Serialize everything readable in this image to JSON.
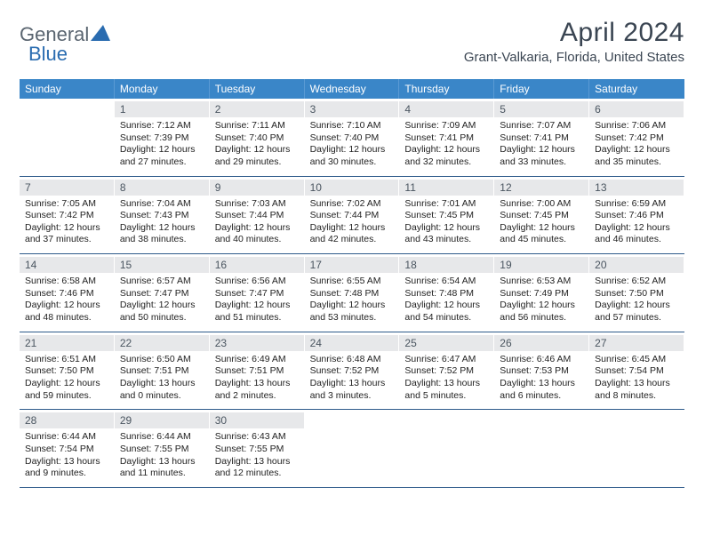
{
  "brand": {
    "text1": "General",
    "text2": "Blue",
    "tri_color": "#2a6cb0"
  },
  "header": {
    "month": "April 2024",
    "location": "Grant-Valkaria, Florida, United States"
  },
  "colors": {
    "dow_bg": "#3a86c8",
    "dow_text": "#ffffff",
    "week_border": "#2d5a8a",
    "daynum_bg": "#e7e8ea",
    "text": "#222222",
    "title_color": "#3a4552"
  },
  "dow": [
    "Sunday",
    "Monday",
    "Tuesday",
    "Wednesday",
    "Thursday",
    "Friday",
    "Saturday"
  ],
  "weeks": [
    [
      {
        "n": "",
        "sr": "",
        "ss": "",
        "dl": ""
      },
      {
        "n": "1",
        "sr": "Sunrise: 7:12 AM",
        "ss": "Sunset: 7:39 PM",
        "dl": "Daylight: 12 hours and 27 minutes."
      },
      {
        "n": "2",
        "sr": "Sunrise: 7:11 AM",
        "ss": "Sunset: 7:40 PM",
        "dl": "Daylight: 12 hours and 29 minutes."
      },
      {
        "n": "3",
        "sr": "Sunrise: 7:10 AM",
        "ss": "Sunset: 7:40 PM",
        "dl": "Daylight: 12 hours and 30 minutes."
      },
      {
        "n": "4",
        "sr": "Sunrise: 7:09 AM",
        "ss": "Sunset: 7:41 PM",
        "dl": "Daylight: 12 hours and 32 minutes."
      },
      {
        "n": "5",
        "sr": "Sunrise: 7:07 AM",
        "ss": "Sunset: 7:41 PM",
        "dl": "Daylight: 12 hours and 33 minutes."
      },
      {
        "n": "6",
        "sr": "Sunrise: 7:06 AM",
        "ss": "Sunset: 7:42 PM",
        "dl": "Daylight: 12 hours and 35 minutes."
      }
    ],
    [
      {
        "n": "7",
        "sr": "Sunrise: 7:05 AM",
        "ss": "Sunset: 7:42 PM",
        "dl": "Daylight: 12 hours and 37 minutes."
      },
      {
        "n": "8",
        "sr": "Sunrise: 7:04 AM",
        "ss": "Sunset: 7:43 PM",
        "dl": "Daylight: 12 hours and 38 minutes."
      },
      {
        "n": "9",
        "sr": "Sunrise: 7:03 AM",
        "ss": "Sunset: 7:44 PM",
        "dl": "Daylight: 12 hours and 40 minutes."
      },
      {
        "n": "10",
        "sr": "Sunrise: 7:02 AM",
        "ss": "Sunset: 7:44 PM",
        "dl": "Daylight: 12 hours and 42 minutes."
      },
      {
        "n": "11",
        "sr": "Sunrise: 7:01 AM",
        "ss": "Sunset: 7:45 PM",
        "dl": "Daylight: 12 hours and 43 minutes."
      },
      {
        "n": "12",
        "sr": "Sunrise: 7:00 AM",
        "ss": "Sunset: 7:45 PM",
        "dl": "Daylight: 12 hours and 45 minutes."
      },
      {
        "n": "13",
        "sr": "Sunrise: 6:59 AM",
        "ss": "Sunset: 7:46 PM",
        "dl": "Daylight: 12 hours and 46 minutes."
      }
    ],
    [
      {
        "n": "14",
        "sr": "Sunrise: 6:58 AM",
        "ss": "Sunset: 7:46 PM",
        "dl": "Daylight: 12 hours and 48 minutes."
      },
      {
        "n": "15",
        "sr": "Sunrise: 6:57 AM",
        "ss": "Sunset: 7:47 PM",
        "dl": "Daylight: 12 hours and 50 minutes."
      },
      {
        "n": "16",
        "sr": "Sunrise: 6:56 AM",
        "ss": "Sunset: 7:47 PM",
        "dl": "Daylight: 12 hours and 51 minutes."
      },
      {
        "n": "17",
        "sr": "Sunrise: 6:55 AM",
        "ss": "Sunset: 7:48 PM",
        "dl": "Daylight: 12 hours and 53 minutes."
      },
      {
        "n": "18",
        "sr": "Sunrise: 6:54 AM",
        "ss": "Sunset: 7:48 PM",
        "dl": "Daylight: 12 hours and 54 minutes."
      },
      {
        "n": "19",
        "sr": "Sunrise: 6:53 AM",
        "ss": "Sunset: 7:49 PM",
        "dl": "Daylight: 12 hours and 56 minutes."
      },
      {
        "n": "20",
        "sr": "Sunrise: 6:52 AM",
        "ss": "Sunset: 7:50 PM",
        "dl": "Daylight: 12 hours and 57 minutes."
      }
    ],
    [
      {
        "n": "21",
        "sr": "Sunrise: 6:51 AM",
        "ss": "Sunset: 7:50 PM",
        "dl": "Daylight: 12 hours and 59 minutes."
      },
      {
        "n": "22",
        "sr": "Sunrise: 6:50 AM",
        "ss": "Sunset: 7:51 PM",
        "dl": "Daylight: 13 hours and 0 minutes."
      },
      {
        "n": "23",
        "sr": "Sunrise: 6:49 AM",
        "ss": "Sunset: 7:51 PM",
        "dl": "Daylight: 13 hours and 2 minutes."
      },
      {
        "n": "24",
        "sr": "Sunrise: 6:48 AM",
        "ss": "Sunset: 7:52 PM",
        "dl": "Daylight: 13 hours and 3 minutes."
      },
      {
        "n": "25",
        "sr": "Sunrise: 6:47 AM",
        "ss": "Sunset: 7:52 PM",
        "dl": "Daylight: 13 hours and 5 minutes."
      },
      {
        "n": "26",
        "sr": "Sunrise: 6:46 AM",
        "ss": "Sunset: 7:53 PM",
        "dl": "Daylight: 13 hours and 6 minutes."
      },
      {
        "n": "27",
        "sr": "Sunrise: 6:45 AM",
        "ss": "Sunset: 7:54 PM",
        "dl": "Daylight: 13 hours and 8 minutes."
      }
    ],
    [
      {
        "n": "28",
        "sr": "Sunrise: 6:44 AM",
        "ss": "Sunset: 7:54 PM",
        "dl": "Daylight: 13 hours and 9 minutes."
      },
      {
        "n": "29",
        "sr": "Sunrise: 6:44 AM",
        "ss": "Sunset: 7:55 PM",
        "dl": "Daylight: 13 hours and 11 minutes."
      },
      {
        "n": "30",
        "sr": "Sunrise: 6:43 AM",
        "ss": "Sunset: 7:55 PM",
        "dl": "Daylight: 13 hours and 12 minutes."
      },
      {
        "n": "",
        "sr": "",
        "ss": "",
        "dl": ""
      },
      {
        "n": "",
        "sr": "",
        "ss": "",
        "dl": ""
      },
      {
        "n": "",
        "sr": "",
        "ss": "",
        "dl": ""
      },
      {
        "n": "",
        "sr": "",
        "ss": "",
        "dl": ""
      }
    ]
  ]
}
